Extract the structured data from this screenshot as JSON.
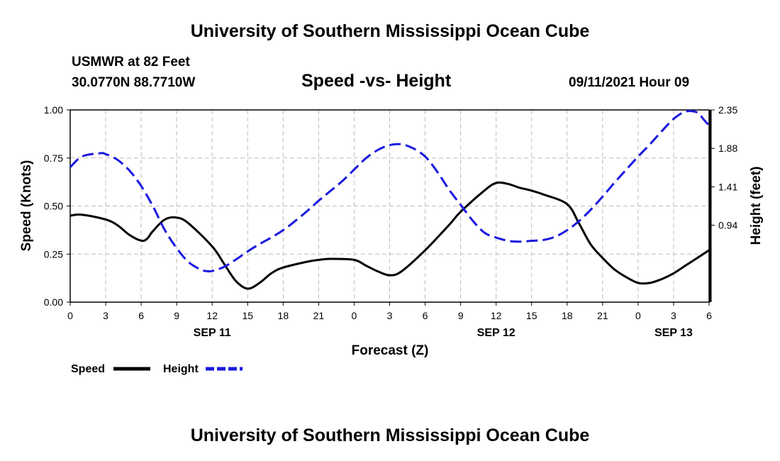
{
  "header": {
    "title": "University of Southern Mississippi Ocean Cube",
    "station": "USMWR at 82 Feet",
    "coordinates": "30.0770N  88.7710W",
    "datestamp": "09/11/2021 Hour 09"
  },
  "footer": {
    "title": "University of Southern Mississippi Ocean Cube"
  },
  "chart_data": {
    "type": "line",
    "title": "Speed -vs- Height",
    "xlabel": "Forecast (Z)",
    "ylabel": "Speed (Knots)",
    "y2label": "Height (feet)",
    "x_range": [
      0,
      54
    ],
    "x_ticks": [
      0,
      3,
      6,
      9,
      12,
      15,
      18,
      21,
      24,
      27,
      30,
      33,
      36,
      39,
      42,
      45,
      48,
      51,
      54
    ],
    "x_tick_labels": [
      "0",
      "3",
      "6",
      "9",
      "12",
      "15",
      "18",
      "21",
      "0",
      "3",
      "6",
      "9",
      "12",
      "15",
      "18",
      "21",
      "0",
      "3",
      "6"
    ],
    "date_labels": [
      {
        "x": 12,
        "label": "SEP 11"
      },
      {
        "x": 36,
        "label": "SEP 12"
      },
      {
        "x": 51,
        "label": "SEP 13"
      }
    ],
    "ylim": [
      0,
      1
    ],
    "y_ticks": [
      0,
      0.25,
      0.5,
      0.75,
      1
    ],
    "y_tick_labels": [
      "0.00",
      "0.25",
      "0.50",
      "0.75",
      "1.00"
    ],
    "y2lim": [
      0,
      2.35
    ],
    "y2_ticks": [
      0.94,
      1.41,
      1.88,
      2.35
    ],
    "y2_tick_labels": [
      "0.94",
      "1.41",
      "1.88",
      "2.35"
    ],
    "grid": true,
    "legend_position": "bottom-left",
    "series": [
      {
        "name": "Speed",
        "axis": "left",
        "color": "#000000",
        "style": "solid",
        "x": [
          0,
          1,
          3,
          4,
          5,
          6,
          6.5,
          7,
          8,
          9,
          10,
          12,
          13,
          14,
          15,
          16,
          17,
          18,
          20,
          21,
          22,
          24,
          25,
          26,
          27,
          28,
          30,
          32,
          33,
          35,
          36,
          37,
          38,
          39,
          40,
          42,
          43,
          44,
          45,
          46,
          47,
          48,
          49,
          50,
          51,
          52,
          53,
          54
        ],
        "values": [
          0.45,
          0.455,
          0.43,
          0.4,
          0.35,
          0.32,
          0.33,
          0.37,
          0.43,
          0.44,
          0.41,
          0.29,
          0.2,
          0.11,
          0.07,
          0.1,
          0.15,
          0.18,
          0.21,
          0.22,
          0.225,
          0.22,
          0.19,
          0.16,
          0.14,
          0.16,
          0.27,
          0.4,
          0.47,
          0.58,
          0.62,
          0.615,
          0.595,
          0.58,
          0.56,
          0.51,
          0.41,
          0.3,
          0.23,
          0.17,
          0.13,
          0.1,
          0.1,
          0.12,
          0.15,
          0.19,
          0.23,
          0.27
        ]
      },
      {
        "name": "Height",
        "axis": "right",
        "color": "#1a1ae0",
        "style": "dashed",
        "x": [
          0,
          1,
          2.5,
          3,
          4,
          5,
          6,
          7,
          8,
          9,
          10,
          11,
          11.5,
          12,
          13,
          14,
          15,
          16,
          17,
          18,
          19,
          20,
          21,
          22,
          23,
          24,
          25,
          26,
          27,
          28,
          29,
          30,
          31,
          32,
          33,
          34,
          35,
          36,
          37,
          38,
          39,
          40,
          41,
          42,
          43,
          44,
          45,
          46,
          47,
          48,
          49,
          50,
          51,
          52,
          53,
          53.5,
          54
        ],
        "values": [
          1.65,
          1.78,
          1.82,
          1.81,
          1.74,
          1.61,
          1.42,
          1.17,
          0.88,
          0.66,
          0.49,
          0.4,
          0.38,
          0.38,
          0.43,
          0.52,
          0.62,
          0.71,
          0.79,
          0.88,
          0.99,
          1.11,
          1.24,
          1.36,
          1.48,
          1.62,
          1.76,
          1.86,
          1.92,
          1.93,
          1.88,
          1.78,
          1.6,
          1.38,
          1.19,
          1.0,
          0.85,
          0.79,
          0.75,
          0.74,
          0.75,
          0.76,
          0.8,
          0.88,
          0.99,
          1.13,
          1.29,
          1.46,
          1.62,
          1.78,
          1.93,
          2.09,
          2.24,
          2.33,
          2.32,
          2.24,
          2.16
        ]
      }
    ]
  }
}
